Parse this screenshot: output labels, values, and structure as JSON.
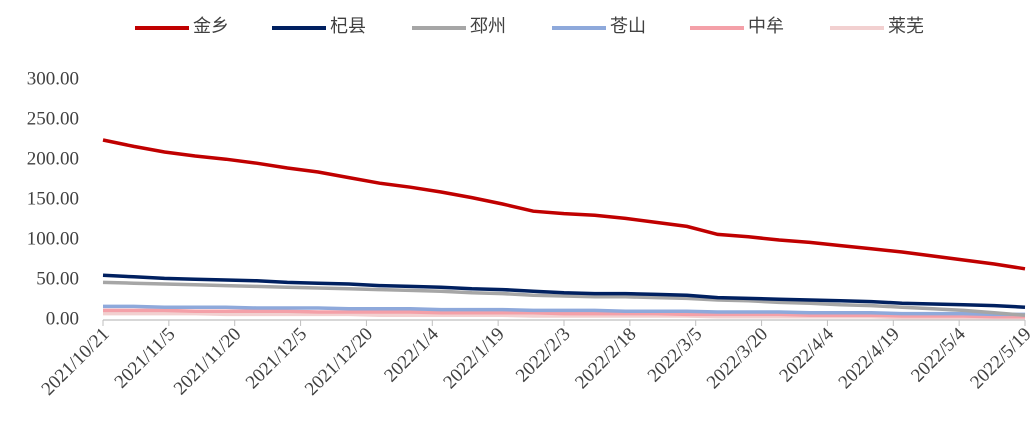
{
  "chart_data": {
    "type": "line",
    "x": [
      "2021/10/21",
      "2021/10/28",
      "2021/11/4",
      "2021/11/11",
      "2021/11/18",
      "2021/11/25",
      "2021/12/2",
      "2021/12/9",
      "2021/12/16",
      "2021/12/23",
      "2021/12/30",
      "2022/1/6",
      "2022/1/13",
      "2022/1/20",
      "2022/1/27",
      "2022/2/3",
      "2022/2/10",
      "2022/2/17",
      "2022/2/24",
      "2022/3/3",
      "2022/3/10",
      "2022/3/17",
      "2022/3/24",
      "2022/3/31",
      "2022/4/7",
      "2022/4/14",
      "2022/4/21",
      "2022/4/28",
      "2022/5/5",
      "2022/5/12",
      "2022/5/19"
    ],
    "series": [
      {
        "name": "金乡",
        "color": "#c00000",
        "values": [
          225,
          217,
          210,
          205,
          201,
          196,
          190,
          185,
          178,
          171,
          166,
          160,
          153,
          145,
          136,
          133,
          131,
          127,
          122,
          117,
          107,
          104,
          100,
          97,
          93,
          89,
          85,
          80,
          75,
          70,
          64
        ]
      },
      {
        "name": "杞县",
        "color": "#002060",
        "values": [
          56,
          54,
          52,
          51,
          50,
          49,
          47,
          46,
          45,
          43,
          42,
          41,
          39,
          38,
          36,
          34,
          33,
          33,
          32,
          31,
          28,
          27,
          26,
          25,
          24,
          23,
          21,
          20,
          19,
          18,
          16
        ]
      },
      {
        "name": "邳州",
        "color": "#a6a6a6",
        "values": [
          47,
          46,
          45,
          44,
          43,
          42,
          41,
          40,
          39,
          38,
          37,
          36,
          34,
          33,
          31,
          30,
          29,
          29,
          28,
          27,
          25,
          24,
          22,
          21,
          19,
          18,
          16,
          14,
          12,
          9,
          6
        ]
      },
      {
        "name": "苍山",
        "color": "#8ea9db",
        "values": [
          17,
          17,
          16,
          16,
          16,
          15,
          15,
          15,
          14,
          14,
          14,
          13,
          13,
          13,
          12,
          12,
          12,
          11,
          11,
          11,
          10,
          10,
          10,
          9,
          9,
          9,
          8,
          8,
          8,
          7,
          7
        ]
      },
      {
        "name": "中牟",
        "color": "#f4a0a8",
        "values": [
          12,
          12,
          12,
          11,
          11,
          11,
          11,
          10,
          10,
          10,
          10,
          9,
          9,
          9,
          9,
          8,
          8,
          8,
          8,
          7,
          7,
          7,
          7,
          6,
          6,
          6,
          5,
          5,
          5,
          4,
          4
        ]
      },
      {
        "name": "莱芜",
        "color": "#f2d0d0",
        "values": [
          8,
          8,
          8,
          8,
          7,
          7,
          7,
          7,
          7,
          6,
          6,
          6,
          6,
          6,
          5,
          5,
          5,
          5,
          5,
          5,
          4,
          4,
          4,
          4,
          4,
          4,
          3,
          3,
          3,
          3,
          3
        ]
      }
    ],
    "xticks": [
      "2021/10/21",
      "2021/11/5",
      "2021/11/20",
      "2021/12/5",
      "2021/12/20",
      "2022/1/4",
      "2022/1/19",
      "2022/2/3",
      "2022/2/18",
      "2022/3/5",
      "2022/3/20",
      "2022/4/4",
      "2022/4/19",
      "2022/5/4",
      "2022/5/19"
    ],
    "ylim": [
      0,
      300
    ],
    "yticks": [
      {
        "value": 0,
        "label": "0.00"
      },
      {
        "value": 50,
        "label": "50.00"
      },
      {
        "value": 100,
        "label": "100.00"
      },
      {
        "value": 150,
        "label": "150.00"
      },
      {
        "value": 200,
        "label": "200.00"
      },
      {
        "value": 250,
        "label": "250.00"
      },
      {
        "value": 300,
        "label": "300.00"
      }
    ],
    "legend": "top"
  }
}
